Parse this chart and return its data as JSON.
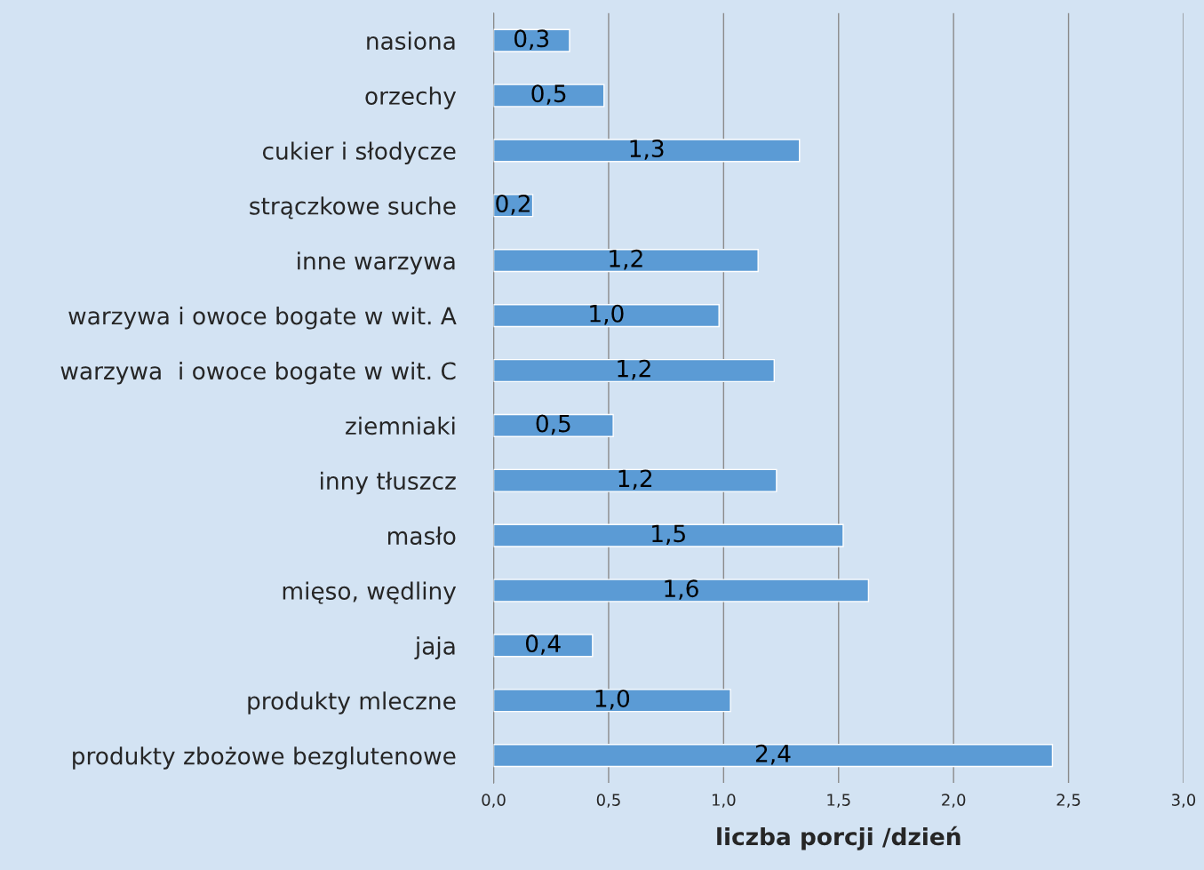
{
  "chart_data": {
    "type": "bar",
    "orientation": "horizontal",
    "xlabel": "liczba porcji /dzień",
    "categories": [
      "nasiona",
      "orzechy",
      "cukier i słodycze",
      "strączkowe suche",
      "inne warzywa",
      "warzywa i owoce bogate w wit. A",
      "warzywa  i owoce bogate w wit. C",
      "ziemniaki",
      "inny tłuszcz",
      "masło",
      "mięso, wędliny",
      "jaja",
      "produkty mleczne",
      "produkty zbożowe bezglutenowe"
    ],
    "values": [
      0.33,
      0.48,
      1.33,
      0.17,
      1.15,
      0.98,
      1.22,
      0.52,
      1.23,
      1.52,
      1.63,
      0.43,
      1.03,
      2.43
    ],
    "value_labels": [
      "0,3",
      "0,5",
      "1,3",
      "0,2",
      "1,2",
      "1,0",
      "1,2",
      "0,5",
      "1,2",
      "1,5",
      "1,6",
      "0,4",
      "1,0",
      "2,4"
    ],
    "color": "#5b9bd5",
    "xlim": [
      0,
      3
    ],
    "xticks": [
      {
        "value": 0,
        "label": "0,0"
      },
      {
        "value": 0.5,
        "label": "0,5"
      },
      {
        "value": 1,
        "label": "1,0"
      },
      {
        "value": 1.5,
        "label": "1,5"
      },
      {
        "value": 2,
        "label": "2,0"
      },
      {
        "value": 2.5,
        "label": "2,5"
      },
      {
        "value": 3,
        "label": "3,0"
      }
    ],
    "grid": "x",
    "legend": false
  }
}
